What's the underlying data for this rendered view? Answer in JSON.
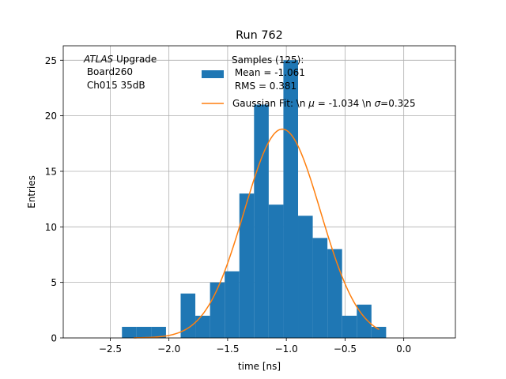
{
  "chart_data": {
    "type": "bar",
    "title": "Run 762",
    "xlabel": "time [ns]",
    "ylabel": "Entries",
    "xlim": [
      -2.9,
      0.44
    ],
    "ylim": [
      0,
      26.3
    ],
    "grid": true,
    "xticks": [
      -2.5,
      -2.0,
      -1.5,
      -1.0,
      -0.5,
      0.0
    ],
    "xtick_labels": [
      "−2.5",
      "−2.0",
      "−1.5",
      "−1.0",
      "−0.5",
      "0.0"
    ],
    "yticks": [
      0,
      5,
      10,
      15,
      20,
      25
    ],
    "ytick_labels": [
      "0",
      "5",
      "10",
      "15",
      "20",
      "25"
    ],
    "annotation": {
      "italic": "ATLAS",
      "line1_rest": " Upgrade",
      "line2": " Board260",
      "line3": " Ch015 35dB"
    },
    "legend": {
      "location": "upper right",
      "hist_label_lines": [
        "Samples (125):",
        " Mean = -1.061",
        " RMS = 0.381"
      ],
      "fit_label": {
        "prefix": "Gaussian Fit: \\n ",
        "mu_symbol": "μ",
        "mu_text": " = -1.034 \\n ",
        "sigma_symbol": "σ",
        "sigma_text": "=0.325"
      }
    },
    "colors": {
      "histogram": "#1f77b4",
      "fit": "#ff7f0e",
      "grid": "#b0b0b0"
    },
    "series": [
      {
        "kind": "histogram",
        "bin_edges": [
          -2.4,
          -2.275,
          -2.15,
          -2.025,
          -1.9,
          -1.775,
          -1.65,
          -1.525,
          -1.4,
          -1.275,
          -1.15,
          -1.025,
          -0.9,
          -0.775,
          -0.65,
          -0.525,
          -0.4,
          -0.275,
          -0.15
        ],
        "counts": [
          1,
          1,
          1,
          0,
          4,
          2,
          5,
          6,
          13,
          21,
          12,
          25,
          11,
          9,
          8,
          2,
          3,
          1
        ]
      },
      {
        "kind": "gaussian_fit",
        "amplitude": 18.8,
        "mean": -1.034,
        "sigma": 0.325,
        "x_range": [
          -2.3,
          -0.21
        ]
      }
    ]
  }
}
